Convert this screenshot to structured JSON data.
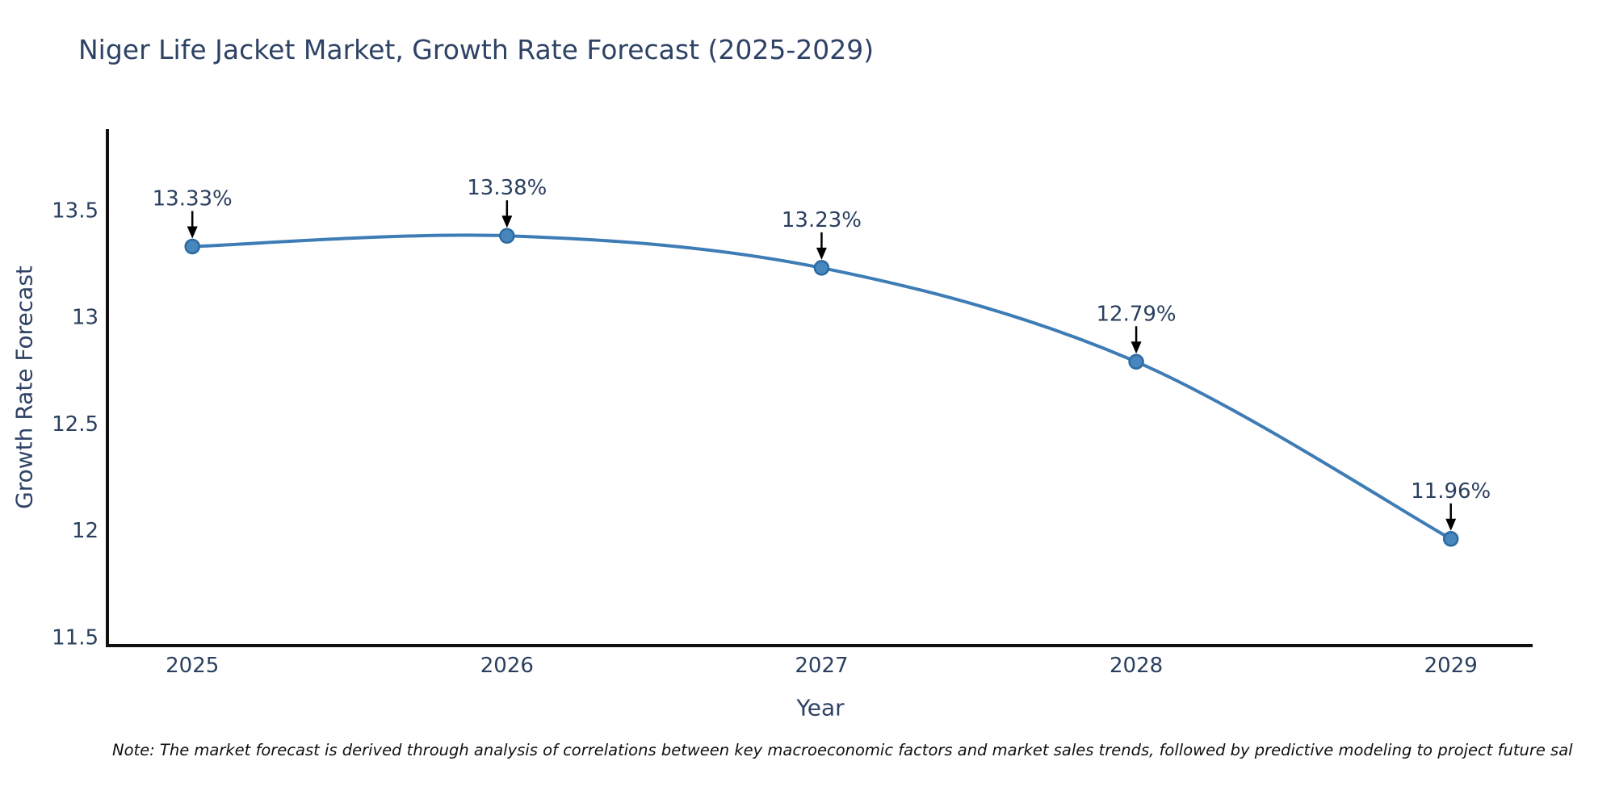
{
  "chart_data": {
    "type": "line",
    "title": "Niger Life Jacket Market, Growth Rate Forecast (2025-2029)",
    "xlabel": "Year",
    "ylabel": "Growth Rate Forecast",
    "x": [
      2025,
      2026,
      2027,
      2028,
      2029
    ],
    "values": [
      13.33,
      13.38,
      13.23,
      12.79,
      11.96
    ],
    "point_labels": [
      "13.33%",
      "13.38%",
      "13.23%",
      "12.79%",
      "11.96%"
    ],
    "yticks": [
      11.5,
      12,
      12.5,
      13,
      13.5
    ],
    "xlim": [
      2024.73,
      2029.26
    ],
    "ylim": [
      11.46,
      13.88
    ],
    "grid": false,
    "legend": "none",
    "line_color": "#3e7cb5",
    "marker_color": "#4787bd",
    "marker_edge_color": "#2c6aa0",
    "annotation_color": "#000000",
    "tick_label_color": "#2a3f5f",
    "axis_title_color": "#2e4265",
    "axis_line_color": "#111111",
    "note": "Note: The market forecast is derived through analysis of correlations between key macroeconomic factors and market sales trends, followed by predictive modeling to project future sal"
  }
}
